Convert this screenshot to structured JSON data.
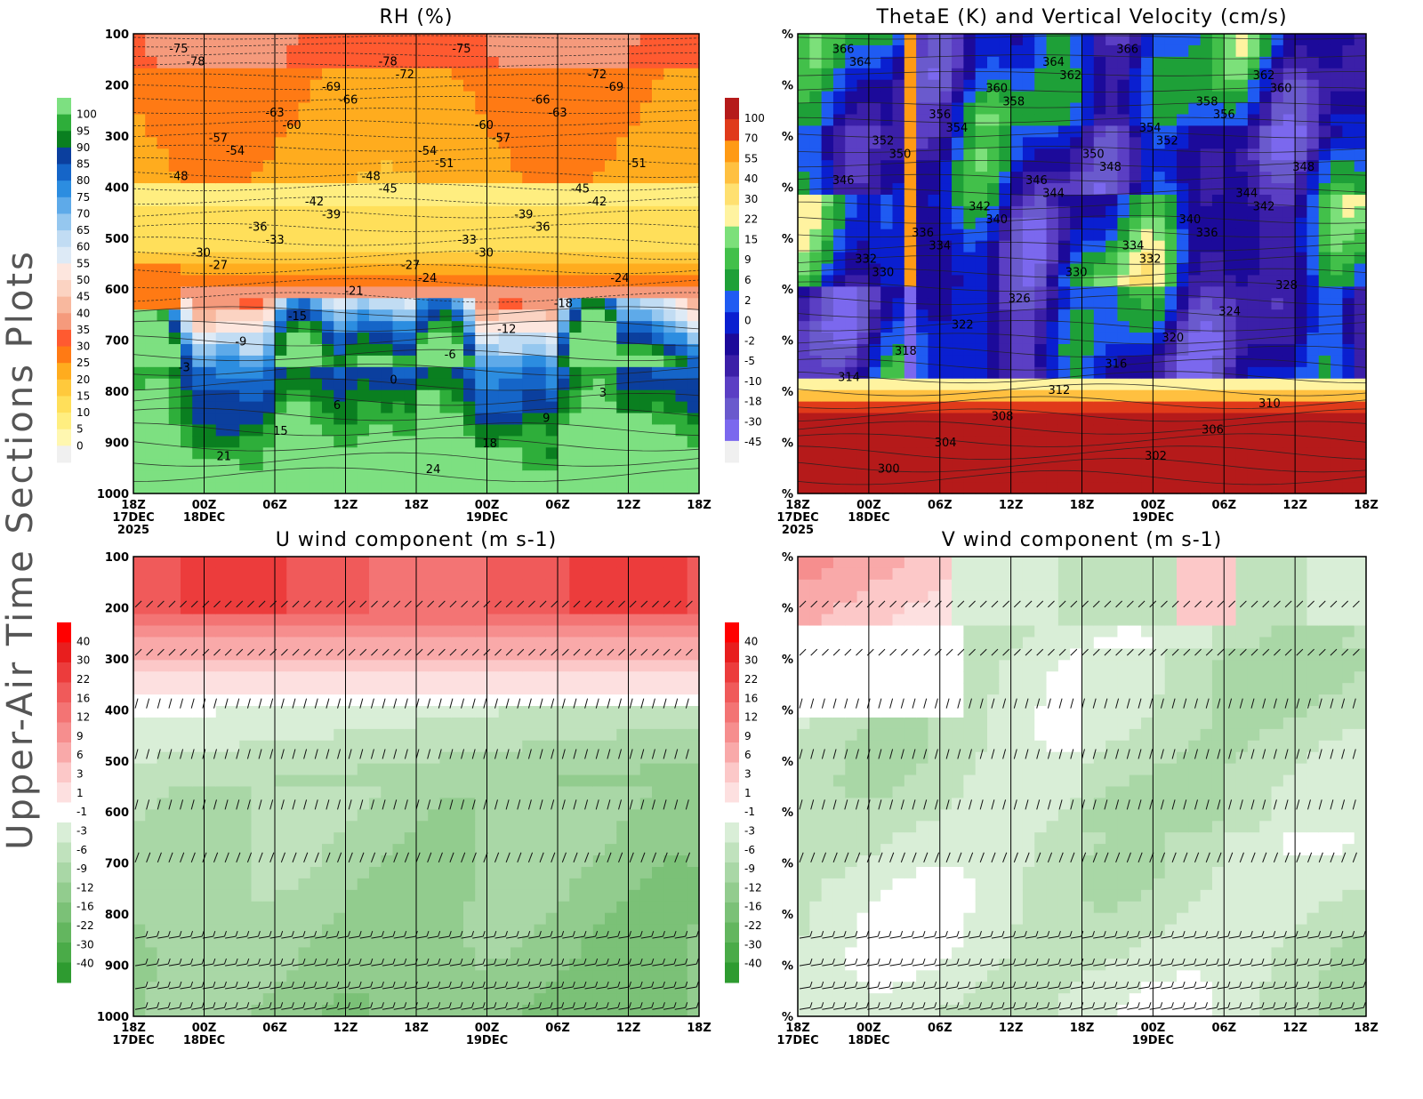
{
  "side_title": "Upper-Air Time Sections Plots",
  "colors": {
    "rh": [
      "#f0f0f0",
      "#fff7b0",
      "#ffee80",
      "#ffdf5a",
      "#ffc93c",
      "#ffac1e",
      "#ff7a14",
      "#ff5a30",
      "#f59a7c",
      "#f8b89e",
      "#fbd3c2",
      "#fde6de",
      "#ddeaf6",
      "#c1dcf3",
      "#95c7ef",
      "#5eaae9",
      "#2c8de0",
      "#1565c8",
      "#0b3f9e",
      "#0a7f20",
      "#2eae3a",
      "#7de081"
    ],
    "thetae": [
      "#7b68ee",
      "#6a5acd",
      "#5b3fc4",
      "#3b1fa8",
      "#1c0a9a",
      "#0a1fd0",
      "#1f5bf2",
      "#1ea038",
      "#42c04a",
      "#7ce07a",
      "#fff3a0",
      "#ffe070",
      "#ffc040",
      "#ff9a14",
      "#e03a1a",
      "#b51a1a"
    ],
    "wind": [
      "#2e9b30",
      "#4aab48",
      "#63b65f",
      "#7bc177",
      "#92cc8e",
      "#a9d7a6",
      "#c0e2bd",
      "#d9eed7",
      "#ffffff",
      "#fde0e0",
      "#fcc8c8",
      "#f9a9a9",
      "#f68e8e",
      "#f37474",
      "#f05a5a",
      "#ec3c3c",
      "#e81e1e",
      "#ff0000"
    ]
  },
  "chart_data": [
    {
      "type": "heatmap",
      "title": "RH (%)",
      "x": [
        "18Z",
        "00Z",
        "06Z",
        "12Z",
        "18Z",
        "00Z",
        "06Z",
        "12Z",
        "18Z"
      ],
      "date_labels": [
        "17DEC",
        "18DEC",
        "",
        "",
        "",
        "19DEC",
        "",
        "",
        ""
      ],
      "year_label": "2025",
      "y_ticks": [
        "100",
        "200",
        "300",
        "400",
        "500",
        "600",
        "700",
        "800",
        "900",
        "1000"
      ],
      "colorbar": [
        "100",
        "95",
        "90",
        "85",
        "80",
        "75",
        "70",
        "65",
        "60",
        "55",
        "50",
        "45",
        "40",
        "35",
        "30",
        "25",
        "20",
        "15",
        "10",
        "5",
        "0"
      ],
      "contour_labels": [
        "-75",
        "-78",
        "-72",
        "-69",
        "-66",
        "-63",
        "-60",
        "-57",
        "-54",
        "-51",
        "-48",
        "-45",
        "-42",
        "-39",
        "-36",
        "-33",
        "-30",
        "-27",
        "-24",
        "-21",
        "-18",
        "-15",
        "-12",
        "-9",
        "-6",
        "-3",
        "0",
        "3",
        "6",
        "9",
        "15",
        "18",
        "21",
        "24"
      ]
    },
    {
      "type": "heatmap",
      "title": "ThetaE (K) and Vertical Velocity (cm/s)",
      "x": [
        "18Z",
        "00Z",
        "06Z",
        "12Z",
        "18Z",
        "00Z",
        "06Z",
        "12Z",
        "18Z"
      ],
      "date_labels": [
        "17DEC",
        "18DEC",
        "",
        "",
        "",
        "19DEC",
        "",
        "",
        ""
      ],
      "year_label": "2025",
      "y_ticks": [
        "%",
        "%",
        "%",
        "%",
        "%",
        "%",
        "%",
        "%",
        "%",
        "%"
      ],
      "colorbar": [
        "100",
        "70",
        "55",
        "40",
        "30",
        "22",
        "15",
        "9",
        "6",
        "2",
        "0",
        "-2",
        "-5",
        "-10",
        "-18",
        "-30",
        "-45"
      ],
      "contour_labels": [
        "366",
        "364",
        "362",
        "360",
        "358",
        "356",
        "354",
        "352",
        "350",
        "348",
        "346",
        "344",
        "342",
        "340",
        "336",
        "334",
        "332",
        "330",
        "328",
        "326",
        "324",
        "322",
        "320",
        "318",
        "316",
        "314",
        "312",
        "310",
        "308",
        "306",
        "304",
        "302",
        "300"
      ]
    },
    {
      "type": "heatmap",
      "title": "U wind component (m s-1)",
      "x": [
        "18Z",
        "00Z",
        "06Z",
        "12Z",
        "18Z",
        "00Z",
        "06Z",
        "12Z",
        "18Z"
      ],
      "date_labels": [
        "17DEC",
        "18DEC",
        "",
        "",
        "",
        "19DEC",
        "",
        "",
        ""
      ],
      "year_label": "2025",
      "y_ticks": [
        "100",
        "200",
        "300",
        "400",
        "500",
        "600",
        "700",
        "800",
        "900",
        "1000"
      ],
      "colorbar": [
        "40",
        "30",
        "22",
        "16",
        "12",
        "9",
        "6",
        "3",
        "1",
        "-1",
        "-3",
        "-6",
        "-9",
        "-12",
        "-16",
        "-22",
        "-30",
        "-40"
      ]
    },
    {
      "type": "heatmap",
      "title": "V wind component (m s-1)",
      "x": [
        "18Z",
        "00Z",
        "06Z",
        "12Z",
        "18Z",
        "00Z",
        "06Z",
        "12Z",
        "18Z"
      ],
      "date_labels": [
        "17DEC",
        "18DEC",
        "",
        "",
        "",
        "19DEC",
        "",
        "",
        ""
      ],
      "year_label": "2025",
      "y_ticks": [
        "%",
        "%",
        "%",
        "%",
        "%",
        "%",
        "%",
        "%",
        "%",
        "%"
      ],
      "colorbar": [
        "40",
        "30",
        "22",
        "16",
        "12",
        "9",
        "6",
        "3",
        "1",
        "-1",
        "-3",
        "-6",
        "-9",
        "-12",
        "-16",
        "-22",
        "-30",
        "-40"
      ]
    }
  ]
}
